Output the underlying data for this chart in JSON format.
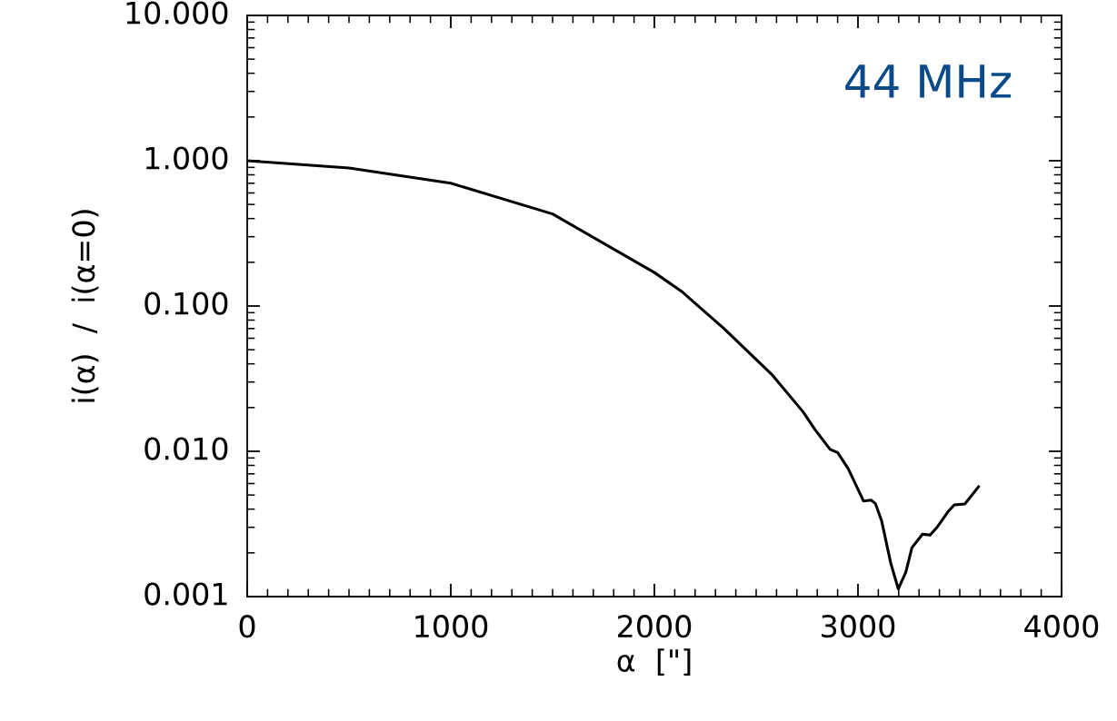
{
  "chart_data": {
    "type": "line",
    "xlabel": "α  [\"]",
    "ylabel": "i(α)  /  i(α=0)",
    "annotations": [
      "44 MHz"
    ],
    "x": [
      0,
      500,
      1000,
      1500,
      2000,
      2134,
      2342,
      2580,
      2729,
      2789,
      2863,
      2900,
      2952,
      3027,
      3064,
      3086,
      3116,
      3161,
      3198,
      3235,
      3265,
      3317,
      3354,
      3391,
      3443,
      3473,
      3525,
      3592
    ],
    "series": [
      {
        "color": "#000000",
        "values": [
          1.0,
          0.89,
          0.7,
          0.43,
          0.17,
          0.126,
          0.07,
          0.0334,
          0.0188,
          0.0141,
          0.0103,
          0.0098,
          0.0076,
          0.00455,
          0.00462,
          0.00436,
          0.00333,
          0.0017,
          0.00113,
          0.00147,
          0.00217,
          0.00269,
          0.00265,
          0.00303,
          0.00385,
          0.00428,
          0.00434,
          0.0057
        ]
      }
    ],
    "log": "y",
    "xlim": [
      0,
      4000
    ],
    "xticks": [
      0,
      1000,
      2000,
      3000,
      4000
    ],
    "ylim": [
      0.001,
      10
    ],
    "yticks": [
      {
        "value": 0.001,
        "label": "0.001"
      },
      {
        "value": 0.01,
        "label": "0.010"
      },
      {
        "value": 0.1,
        "label": "0.100"
      },
      {
        "value": 1,
        "label": "1.000"
      },
      {
        "value": 10,
        "label": "10.000"
      }
    ],
    "grid": false,
    "marker": "none",
    "line_style": "solid"
  }
}
